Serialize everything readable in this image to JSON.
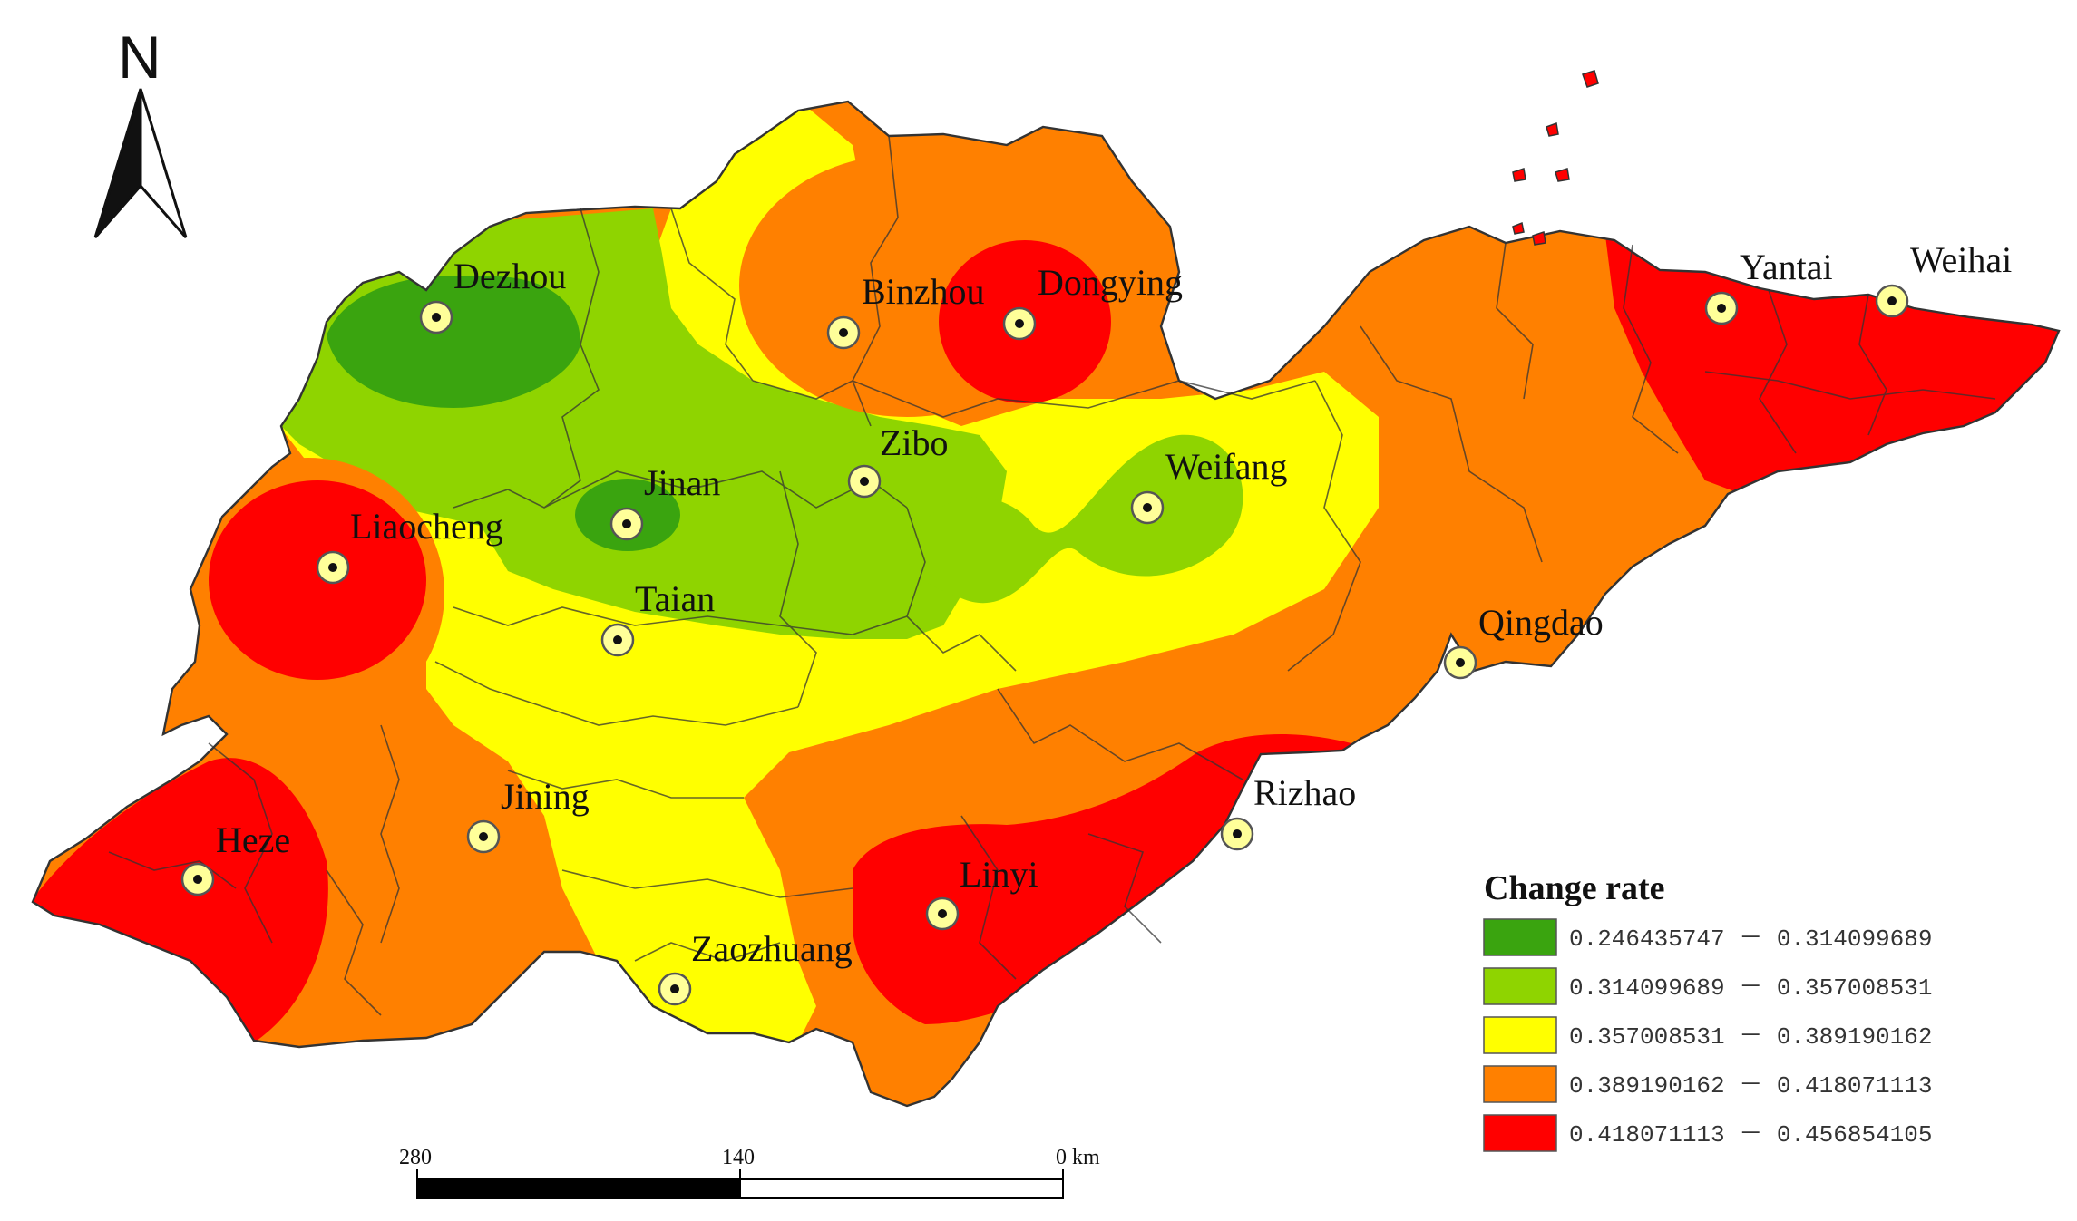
{
  "north_arrow": {
    "letter": "N"
  },
  "cities": [
    {
      "id": "dezhou",
      "name": "Dezhou"
    },
    {
      "id": "binzhou",
      "name": "Binzhou"
    },
    {
      "id": "dongying",
      "name": "Dongying"
    },
    {
      "id": "yantai",
      "name": "Yantai"
    },
    {
      "id": "weihai",
      "name": "Weihai"
    },
    {
      "id": "zibo",
      "name": "Zibo"
    },
    {
      "id": "jinan",
      "name": "Jinan"
    },
    {
      "id": "weifang",
      "name": "Weifang"
    },
    {
      "id": "liaocheng",
      "name": "Liaocheng"
    },
    {
      "id": "taian",
      "name": "Taian"
    },
    {
      "id": "qingdao",
      "name": "Qingdao"
    },
    {
      "id": "jining",
      "name": "Jining"
    },
    {
      "id": "rizhao",
      "name": "Rizhao"
    },
    {
      "id": "heze",
      "name": "Heze"
    },
    {
      "id": "linyi",
      "name": "Linyi"
    },
    {
      "id": "zaozhuang",
      "name": "Zaozhuang"
    }
  ],
  "scale_bar": {
    "labels": [
      "280",
      "140",
      "0 km"
    ]
  },
  "legend": {
    "title": "Change rate",
    "classes": [
      {
        "range": "0.246435747  －  0.314099689",
        "color": "#3aa40f"
      },
      {
        "range": "0.314099689  －  0.357008531",
        "color": "#8fd400"
      },
      {
        "range": "0.357008531  －  0.389190162",
        "color": "#ffff00"
      },
      {
        "range": "0.389190162  －  0.418071113",
        "color": "#ff8000"
      },
      {
        "range": "0.418071113  －  0.456854105",
        "color": "#ff0000"
      }
    ]
  }
}
